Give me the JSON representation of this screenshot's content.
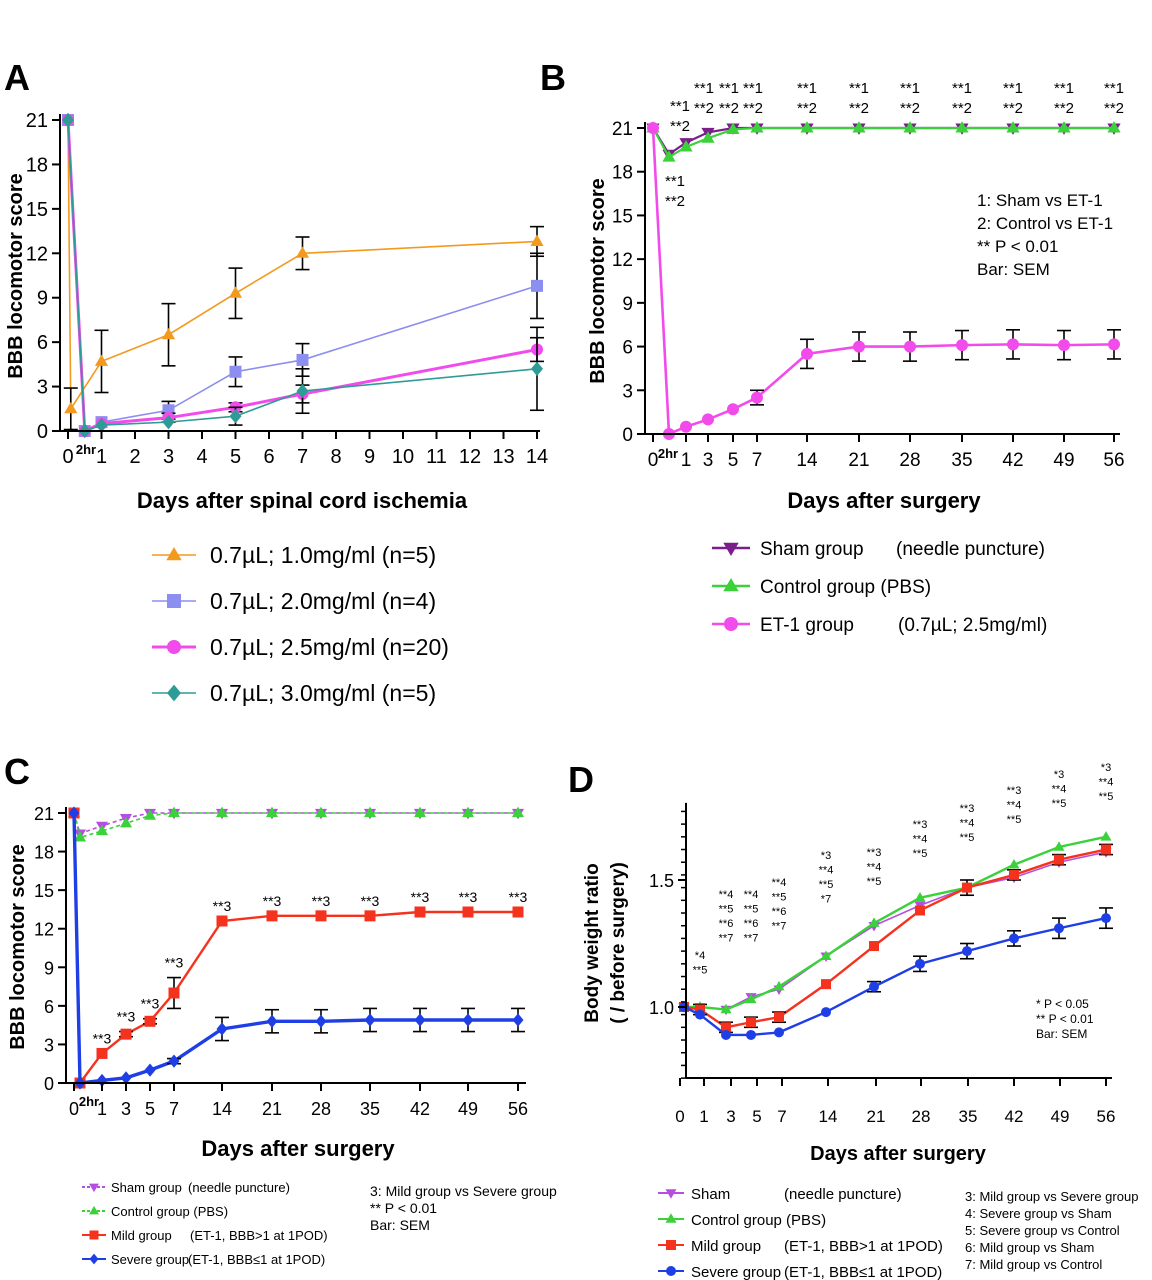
{
  "figure": {
    "panel_letters": [
      "A",
      "B",
      "C",
      "D"
    ]
  },
  "chart_data": [
    {
      "panel": "A",
      "type": "line",
      "xlabel": "Days after spinal cord ischemia",
      "ylabel": "BBB locomotor score",
      "xlim": [
        0,
        14
      ],
      "ylim": [
        0,
        21
      ],
      "xticks": [
        "0",
        "1",
        "2",
        "3",
        "4",
        "5",
        "6",
        "7",
        "8",
        "9",
        "10",
        "11",
        "12",
        "13",
        "14"
      ],
      "yticks": [
        "0",
        "3",
        "6",
        "9",
        "12",
        "15",
        "18",
        "21"
      ],
      "extra_tick_label": "2hr",
      "legend_position": "below",
      "series": [
        {
          "name": "0.7µL; 1.0mg/ml (n=5)",
          "color": "#F39A1E",
          "marker": "triangle",
          "x": [
            0,
            0.083,
            1,
            3,
            5,
            7,
            14
          ],
          "y": [
            21,
            1.5,
            4.7,
            6.5,
            9.3,
            12,
            12.8
          ],
          "err": [
            0,
            1.4,
            2.1,
            2.1,
            1.7,
            1.1,
            1.0
          ]
        },
        {
          "name": "0.7µL; 2.0mg/ml (n=4)",
          "color": "#8C8FEF",
          "marker": "square",
          "x": [
            0,
            0.5,
            1,
            3,
            5,
            7,
            14
          ],
          "y": [
            21,
            0,
            0.6,
            1.4,
            4.0,
            4.8,
            9.8
          ],
          "err": [
            0,
            0,
            0,
            0.6,
            1.0,
            1.1,
            2.2
          ]
        },
        {
          "name": "0.7µL; 2.5mg/ml (n=20)",
          "color": "#F24BEB",
          "marker": "circle",
          "x": [
            0,
            0.5,
            1,
            3,
            5,
            7,
            14
          ],
          "y": [
            21,
            0,
            0.5,
            0.9,
            1.6,
            2.5,
            5.5
          ],
          "err": [
            0,
            0,
            0,
            0.3,
            0.3,
            0.6,
            0.8
          ]
        },
        {
          "name": "0.7µL; 3.0mg/ml (n=5)",
          "color": "#2E9B97",
          "marker": "diamond",
          "x": [
            0,
            0.5,
            1,
            3,
            5,
            7,
            14
          ],
          "y": [
            21,
            0,
            0.4,
            0.6,
            1.0,
            2.7,
            4.2
          ],
          "err": [
            0,
            0,
            0,
            0,
            0.6,
            1.5,
            2.8
          ]
        }
      ]
    },
    {
      "panel": "B",
      "type": "line",
      "xlabel": "Days after surgery",
      "ylabel": "BBB locomotor score",
      "ylim": [
        0,
        21
      ],
      "xticks": [
        "0",
        "1",
        "3",
        "5",
        "7",
        "14",
        "21",
        "28",
        "35",
        "42",
        "49",
        "56"
      ],
      "yticks": [
        "0",
        "3",
        "6",
        "9",
        "12",
        "15",
        "18",
        "21"
      ],
      "extra_tick_label": "2hr",
      "annotations": {
        "top": [
          "**1",
          "**2"
        ],
        "low": [
          "**1",
          "**2"
        ]
      },
      "notes": [
        "1: Sham vs ET-1",
        "2: Control vs ET-1",
        "** P < 0.01",
        "Bar: SEM"
      ],
      "legend_position": "below",
      "series": [
        {
          "name": "Sham group",
          "detail": "(needle puncture)",
          "color": "#7B1E8C",
          "marker": "triangle-down",
          "x": [
            "0",
            "2hr",
            "1",
            "3",
            "5",
            "7",
            "14",
            "21",
            "28",
            "35",
            "42",
            "49",
            "56"
          ],
          "y": [
            21,
            19.2,
            20.0,
            20.7,
            21,
            21,
            21,
            21,
            21,
            21,
            21,
            21,
            21
          ],
          "err": [
            0,
            0,
            0,
            0,
            0,
            0,
            0,
            0,
            0,
            0,
            0,
            0,
            0
          ]
        },
        {
          "name": "Control group (PBS)",
          "detail": "",
          "color": "#3BD13B",
          "marker": "triangle",
          "x": [
            "0",
            "2hr",
            "1",
            "3",
            "5",
            "7",
            "14",
            "21",
            "28",
            "35",
            "42",
            "49",
            "56"
          ],
          "y": [
            21,
            19.0,
            19.7,
            20.3,
            20.9,
            21,
            21,
            21,
            21,
            21,
            21,
            21,
            21
          ],
          "err": [
            0,
            0,
            0,
            0,
            0,
            0,
            0,
            0,
            0,
            0,
            0,
            0,
            0
          ]
        },
        {
          "name": "ET-1 group",
          "detail": "(0.7µL; 2.5mg/ml)",
          "color": "#F24BEB",
          "marker": "circle",
          "x": [
            "0",
            "2hr",
            "1",
            "3",
            "5",
            "7",
            "14",
            "21",
            "28",
            "35",
            "42",
            "49",
            "56"
          ],
          "y": [
            21,
            0,
            0.5,
            1.0,
            1.7,
            2.5,
            5.5,
            6.0,
            6.0,
            6.1,
            6.15,
            6.1,
            6.15
          ],
          "err": [
            0,
            0,
            0,
            0,
            0,
            0.5,
            1.0,
            1.0,
            1.0,
            1.0,
            1.0,
            1.0,
            1.0
          ]
        }
      ]
    },
    {
      "panel": "C",
      "type": "line",
      "xlabel": "Days after surgery",
      "ylabel": "BBB locomotor score",
      "ylim": [
        0,
        21
      ],
      "xticks": [
        "0",
        "1",
        "3",
        "5",
        "7",
        "14",
        "21",
        "28",
        "35",
        "42",
        "49",
        "56"
      ],
      "yticks": [
        "0",
        "3",
        "6",
        "9",
        "12",
        "15",
        "18",
        "21"
      ],
      "extra_tick_label": "2hr",
      "annotation": "**3",
      "notes": [
        "3: Mild group vs Severe group",
        "** P < 0.01",
        "Bar: SEM"
      ],
      "legend_position": "below",
      "series": [
        {
          "name": "Sham group",
          "detail": "(needle puncture)",
          "color": "#B44FE0",
          "marker": "triangle-down",
          "dashed": true,
          "x": [
            "0",
            "2hr",
            "1",
            "3",
            "5",
            "7",
            "14",
            "21",
            "28",
            "35",
            "42",
            "49",
            "56"
          ],
          "y": [
            21,
            19.4,
            20.0,
            20.6,
            21,
            21,
            21,
            21,
            21,
            21,
            21,
            21,
            21
          ],
          "err": [
            0,
            0,
            0,
            0,
            0,
            0,
            0,
            0,
            0,
            0,
            0,
            0,
            0
          ]
        },
        {
          "name": "Control group (PBS)",
          "detail": "",
          "color": "#3BD13B",
          "marker": "triangle",
          "dashed": true,
          "x": [
            "0",
            "2hr",
            "1",
            "3",
            "5",
            "7",
            "14",
            "21",
            "28",
            "35",
            "42",
            "49",
            "56"
          ],
          "y": [
            21,
            19.1,
            19.6,
            20.2,
            20.8,
            21,
            21,
            21,
            21,
            21,
            21,
            21,
            21
          ],
          "err": [
            0,
            0,
            0,
            0,
            0,
            0,
            0,
            0,
            0,
            0,
            0,
            0,
            0
          ]
        },
        {
          "name": "Mild group",
          "detail": "(ET-1, BBB>1 at 1POD)",
          "color": "#F4321E",
          "marker": "square",
          "x": [
            "0",
            "2hr",
            "1",
            "3",
            "5",
            "7",
            "14",
            "21",
            "28",
            "35",
            "42",
            "49",
            "56"
          ],
          "y": [
            21,
            0,
            2.3,
            3.8,
            4.8,
            7.0,
            12.6,
            13.0,
            13.0,
            13.0,
            13.3,
            13.3,
            13.3
          ],
          "err": [
            0,
            0,
            0,
            0.2,
            0.2,
            1.2,
            0,
            0,
            0,
            0,
            0,
            0,
            0
          ]
        },
        {
          "name": "Severe group",
          "detail": "(ET-1, BBB≤1 at 1POD)",
          "color": "#1F3FE6",
          "marker": "diamond",
          "x": [
            "0",
            "2hr",
            "1",
            "3",
            "5",
            "7",
            "14",
            "21",
            "28",
            "35",
            "42",
            "49",
            "56"
          ],
          "y": [
            21,
            0,
            0.2,
            0.4,
            1.0,
            1.7,
            4.2,
            4.8,
            4.8,
            4.9,
            4.9,
            4.9,
            4.9
          ],
          "err": [
            0,
            0,
            0,
            0,
            0,
            0.2,
            0.9,
            0.9,
            0.9,
            0.9,
            0.9,
            0.9,
            0.9
          ]
        }
      ]
    },
    {
      "panel": "D",
      "type": "line",
      "xlabel": "Days after surgery",
      "ylabel_lines": [
        "Body weight  ratio",
        "( / before surgery)"
      ],
      "xticks": [
        "0",
        "1",
        "3",
        "5",
        "7",
        "14",
        "21",
        "28",
        "35",
        "42",
        "49",
        "56"
      ],
      "yticks": [
        "1.0",
        "1.5"
      ],
      "ylim": [
        0.72,
        1.8
      ],
      "notes": [
        "*  P < 0.05",
        "** P < 0.01",
        "Bar: SEM"
      ],
      "comparison_notes": [
        "3: Mild group vs Severe group",
        "4: Severe group vs Sham",
        "5: Severe group vs Control",
        "6: Mild group vs Sham",
        "7: Mild group vs Control"
      ],
      "annotations": [
        {
          "x": "1",
          "lines": [
            "*4",
            "**5"
          ]
        },
        {
          "x": "3",
          "lines": [
            "**4",
            "**5",
            "**6",
            "**7"
          ]
        },
        {
          "x": "5",
          "lines": [
            "**4",
            "**5",
            "**6",
            "**7"
          ]
        },
        {
          "x": "7",
          "lines": [
            "**4",
            "**5",
            "**6",
            "**7"
          ]
        },
        {
          "x": "14",
          "lines": [
            "*3",
            "**4",
            "**5",
            "*7"
          ]
        },
        {
          "x": "21",
          "lines": [
            "**3",
            "**4",
            "**5"
          ]
        },
        {
          "x": "28",
          "lines": [
            "**3",
            "**4",
            "**5"
          ]
        },
        {
          "x": "35",
          "lines": [
            "**3",
            "**4",
            "**5"
          ]
        },
        {
          "x": "42",
          "lines": [
            "**3",
            "**4",
            "**5"
          ]
        },
        {
          "x": "49",
          "lines": [
            "*3",
            "**4",
            "**5"
          ]
        },
        {
          "x": "56",
          "lines": [
            "*3",
            "**4",
            "**5"
          ]
        }
      ],
      "legend_position": "below",
      "series": [
        {
          "name": "Sham",
          "detail": "(needle puncture)",
          "color": "#B44FE0",
          "marker": "triangle-down",
          "x": [
            "0",
            "1",
            "3",
            "5",
            "7",
            "14",
            "21",
            "28",
            "35",
            "42",
            "49",
            "56"
          ],
          "y": [
            1.0,
            1.0,
            0.99,
            1.04,
            1.07,
            1.2,
            1.32,
            1.4,
            1.47,
            1.51,
            1.57,
            1.61
          ],
          "err": [
            0,
            0,
            0,
            0,
            0,
            0,
            0,
            0,
            0,
            0,
            0,
            0
          ]
        },
        {
          "name": "Control group (PBS)",
          "detail": "",
          "color": "#3BD13B",
          "marker": "triangle",
          "x": [
            "0",
            "1",
            "3",
            "5",
            "7",
            "14",
            "21",
            "28",
            "35",
            "42",
            "49",
            "56"
          ],
          "y": [
            1.0,
            1.0,
            0.99,
            1.03,
            1.08,
            1.2,
            1.33,
            1.43,
            1.47,
            1.56,
            1.63,
            1.67
          ],
          "err": [
            0,
            0,
            0,
            0,
            0,
            0,
            0,
            0,
            0,
            0,
            0,
            0
          ]
        },
        {
          "name": "Mild group",
          "detail": "(ET-1, BBB>1 at 1POD)",
          "color": "#F4321E",
          "marker": "square",
          "x": [
            "0",
            "1",
            "3",
            "5",
            "7",
            "14",
            "21",
            "28",
            "35",
            "42",
            "49",
            "56"
          ],
          "y": [
            1.0,
            0.99,
            0.92,
            0.94,
            0.96,
            1.09,
            1.24,
            1.38,
            1.47,
            1.52,
            1.58,
            1.62
          ],
          "err": [
            0,
            0.02,
            0.02,
            0.02,
            0.02,
            0,
            0,
            0,
            0.03,
            0.02,
            0.02,
            0.02
          ]
        },
        {
          "name": "Severe group",
          "detail": "(ET-1, BBB≤1 at 1POD)",
          "color": "#1F3FE6",
          "marker": "circle",
          "x": [
            "0",
            "1",
            "3",
            "5",
            "7",
            "14",
            "21",
            "28",
            "35",
            "42",
            "49",
            "56"
          ],
          "y": [
            1.0,
            0.97,
            0.89,
            0.89,
            0.9,
            0.98,
            1.08,
            1.17,
            1.22,
            1.27,
            1.31,
            1.35
          ],
          "err": [
            0,
            0,
            0,
            0,
            0,
            0,
            0.02,
            0.03,
            0.03,
            0.03,
            0.04,
            0.04
          ]
        }
      ]
    }
  ]
}
